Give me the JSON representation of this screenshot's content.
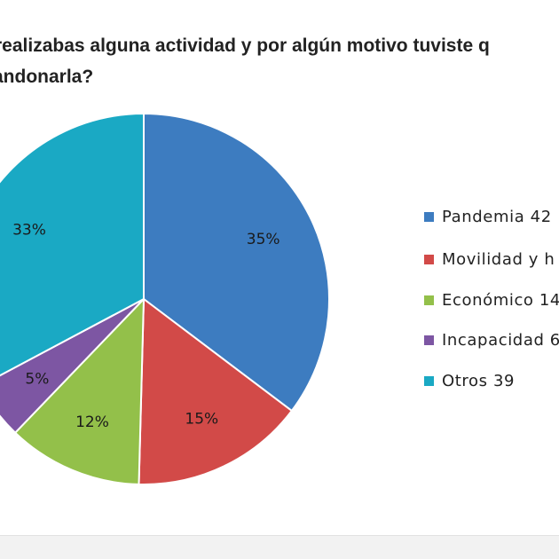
{
  "chart_data": {
    "type": "pie",
    "title": "¿Si realizabas alguna actividad y por algún motivo tuviste que abandonarla?",
    "title_visible_lines": [
      "realizabas alguna actividad y por algún motivo tuviste q",
      "andonarla?"
    ],
    "slices": [
      {
        "name": "Pandemia",
        "value": 42,
        "percent": 35,
        "percent_label": "35%",
        "color": "#3d7cc0"
      },
      {
        "name": "Movilidad y h",
        "value": 18,
        "percent": 15,
        "percent_label": "15%",
        "color": "#d24a48"
      },
      {
        "name": "Económico",
        "value": 14,
        "percent": 12,
        "percent_label": "12%",
        "color": "#93c04a"
      },
      {
        "name": "Incapacidad",
        "value": 6,
        "percent": 5,
        "percent_label": "5%",
        "color": "#7d56a3"
      },
      {
        "name": "Otros",
        "value": 39,
        "percent": 33,
        "percent_label": "33%",
        "color": "#1aa9c4"
      }
    ],
    "legend": [
      {
        "label": "Pandemia 42",
        "color": "#3d7cc0"
      },
      {
        "label": "Movilidad y h",
        "color": "#d24a48"
      },
      {
        "label": "Económico 14",
        "color": "#93c04a"
      },
      {
        "label": "Incapacidad 6",
        "color": "#7d56a3"
      },
      {
        "label": "Otros 39",
        "color": "#1aa9c4"
      }
    ],
    "legend_position": "right"
  }
}
